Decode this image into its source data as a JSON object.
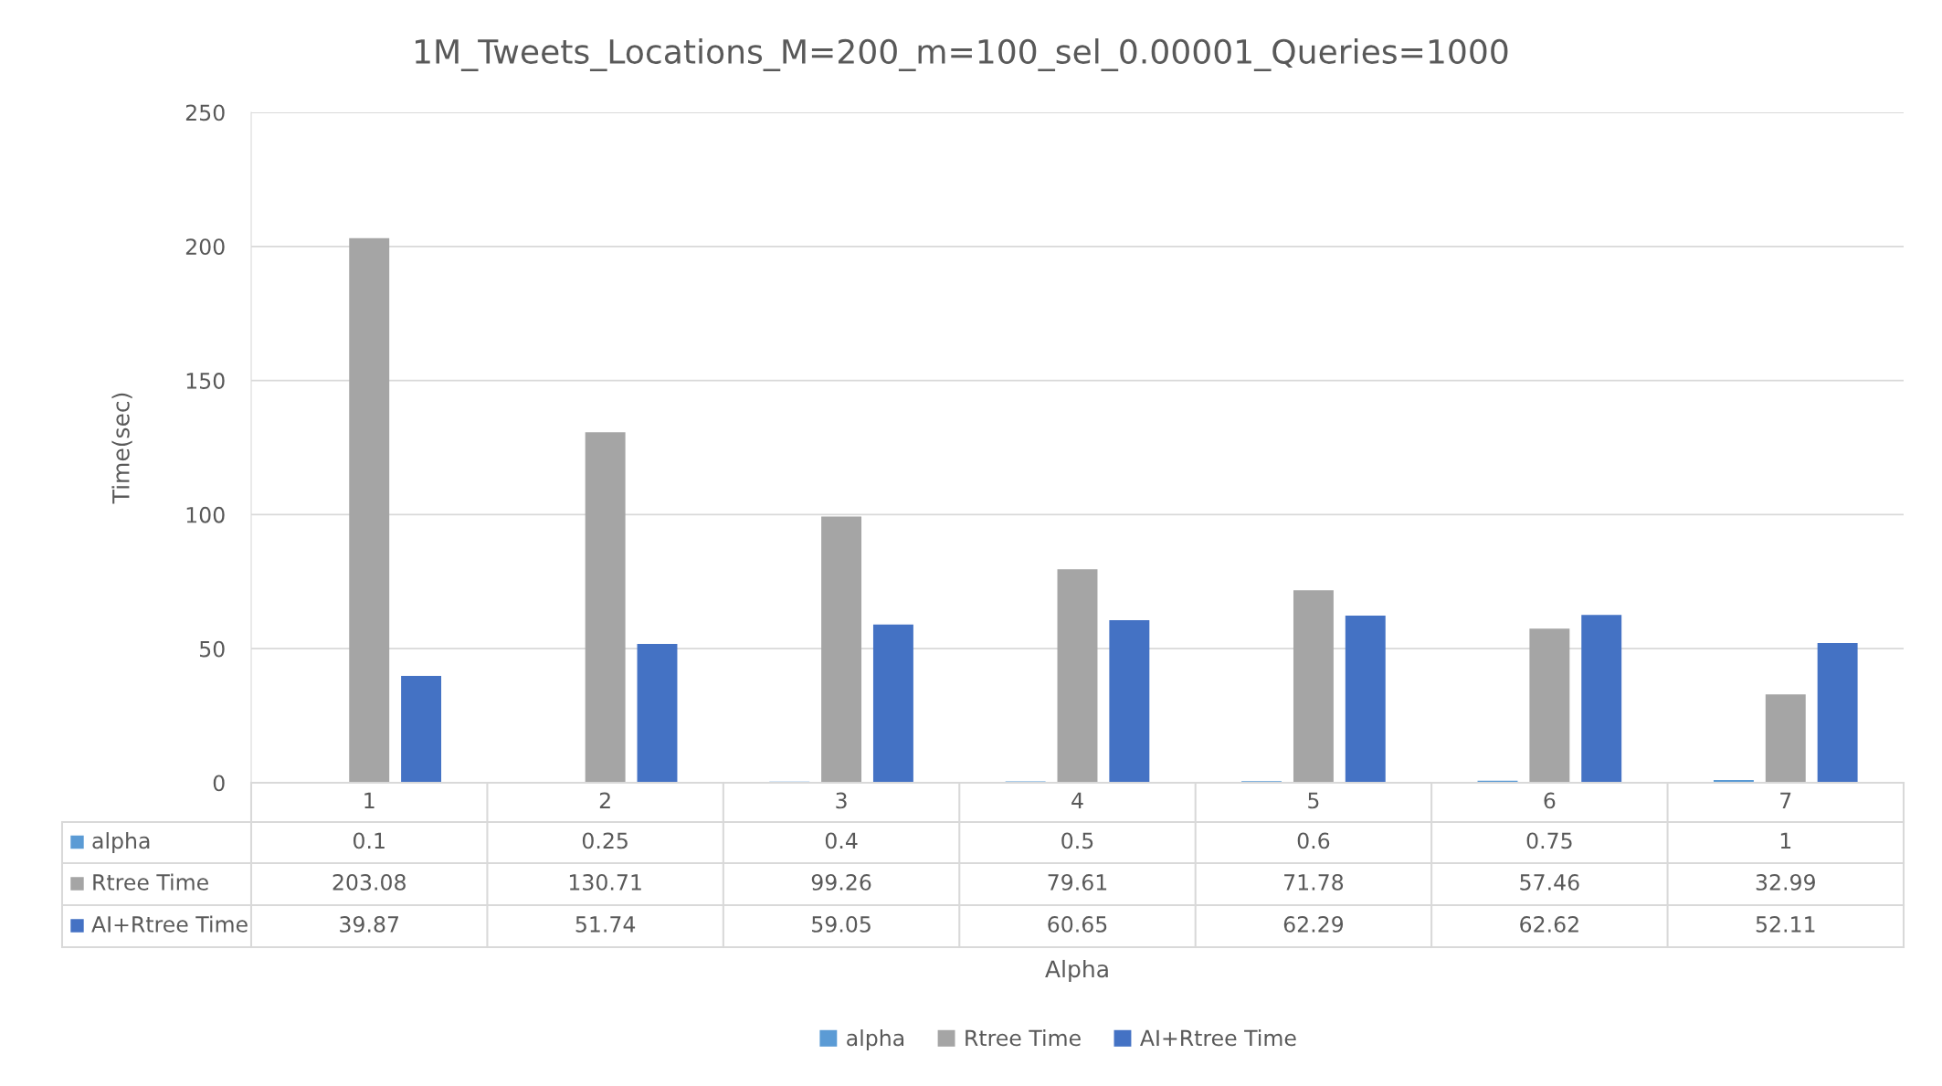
{
  "chart_data": {
    "type": "bar",
    "title": "1M_Tweets_Locations_M=200_m=100_sel_0.00001_Queries=1000",
    "annotations": [
      "Alpha"
    ],
    "ylabel": "Time(sec)",
    "categories": [
      "1",
      "2",
      "3",
      "4",
      "5",
      "6",
      "7"
    ],
    "series": [
      {
        "name": "alpha",
        "color": "#5b9bd5",
        "values": [
          0.1,
          0.25,
          0.4,
          0.5,
          0.6,
          0.75,
          1
        ]
      },
      {
        "name": "Rtree Time",
        "color": "#a5a5a5",
        "values": [
          203.08,
          130.71,
          99.26,
          79.61,
          71.78,
          57.46,
          32.99
        ]
      },
      {
        "name": "AI+Rtree Time",
        "color": "#4472c4",
        "values": [
          39.87,
          51.74,
          59.05,
          60.65,
          62.29,
          62.62,
          52.11
        ]
      }
    ],
    "ylim": [
      0,
      250
    ],
    "yticks": [
      0,
      50,
      100,
      150,
      200,
      250
    ],
    "grid": "y",
    "legend": "bottom",
    "data_labels": true
  }
}
